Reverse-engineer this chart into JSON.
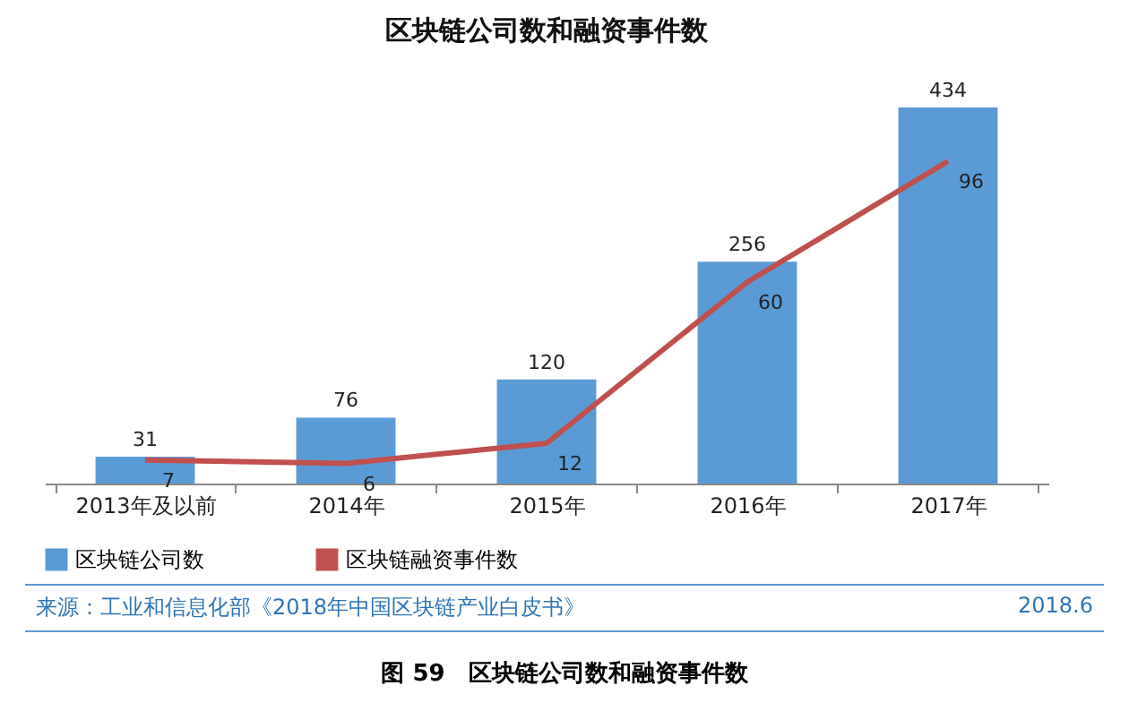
{
  "chart_data": {
    "type": "bar",
    "title": "区块链公司数和融资事件数",
    "categories": [
      "2013年及以前",
      "2014年",
      "2015年",
      "2016年",
      "2017年"
    ],
    "series": [
      {
        "name": "区块链公司数",
        "color": "#5b9bd5",
        "values": [
          31,
          76,
          120,
          256,
          434
        ]
      },
      {
        "name": "区块链融资事件数",
        "type": "line",
        "axis": "y2",
        "color": "#c0504d",
        "values": [
          7,
          6,
          12,
          60,
          96
        ]
      }
    ],
    "data_labels": true,
    "tick_labels": "x",
    "legend": "bottom",
    "grid": false,
    "marker": "none",
    "annotations": [
      "来源：工业和信息化部《2018年中国区块链产业白皮书》",
      "2018.6",
      "图 59　区块链公司数和融资事件数"
    ]
  }
}
